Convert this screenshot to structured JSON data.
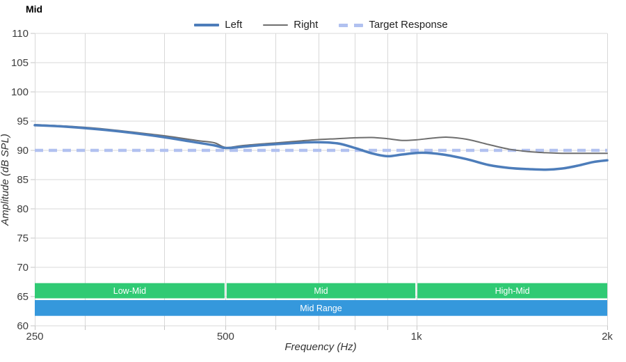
{
  "title": "Mid",
  "legend": [
    {
      "label": "Left",
      "style": "solid",
      "color": "#4d7dba"
    },
    {
      "label": "Right",
      "style": "solid",
      "color": "#6e6e6e"
    },
    {
      "label": "Target Response",
      "style": "dashed",
      "color": "#b1c1f0"
    }
  ],
  "chart_data": {
    "type": "line",
    "title": "Mid",
    "xlabel": "Frequency (Hz)",
    "ylabel": "Amplitude (dB SPL)",
    "x_scale": "log",
    "xlim": [
      250,
      2000
    ],
    "ylim": [
      60,
      110
    ],
    "grid": true,
    "legend_position": "top-center",
    "x_ticks": [
      {
        "value": 250,
        "label": "250"
      },
      {
        "value": 500,
        "label": "500"
      },
      {
        "value": 1000,
        "label": "1k"
      },
      {
        "value": 2000,
        "label": "2k"
      }
    ],
    "x_gridlines": [
      250,
      300,
      400,
      500,
      600,
      700,
      800,
      900,
      1000,
      2000
    ],
    "y_ticks": [
      {
        "value": 110,
        "label": "110"
      },
      {
        "value": 105,
        "label": "105"
      },
      {
        "value": 100,
        "label": "100"
      },
      {
        "value": 95,
        "label": "95"
      },
      {
        "value": 90,
        "label": "90"
      },
      {
        "value": 85,
        "label": "85"
      },
      {
        "value": 80,
        "label": "80"
      },
      {
        "value": 75,
        "label": "75"
      },
      {
        "value": 70,
        "label": "70"
      },
      {
        "value": 65,
        "label": "65"
      },
      {
        "value": 60,
        "label": "60"
      }
    ],
    "series": [
      {
        "name": "Left",
        "color": "#4d7dba",
        "width": 3.5,
        "dash": null,
        "points": [
          [
            250,
            94.3
          ],
          [
            280,
            94.05
          ],
          [
            315,
            93.6
          ],
          [
            355,
            93.0
          ],
          [
            400,
            92.25
          ],
          [
            450,
            91.35
          ],
          [
            480,
            90.85
          ],
          [
            500,
            90.4
          ],
          [
            530,
            90.6
          ],
          [
            570,
            90.9
          ],
          [
            630,
            91.2
          ],
          [
            690,
            91.4
          ],
          [
            750,
            91.2
          ],
          [
            800,
            90.4
          ],
          [
            850,
            89.5
          ],
          [
            900,
            89.0
          ],
          [
            950,
            89.3
          ],
          [
            1020,
            89.6
          ],
          [
            1100,
            89.3
          ],
          [
            1200,
            88.5
          ],
          [
            1300,
            87.5
          ],
          [
            1400,
            87.0
          ],
          [
            1500,
            86.8
          ],
          [
            1600,
            86.7
          ],
          [
            1700,
            86.9
          ],
          [
            1800,
            87.4
          ],
          [
            1900,
            88.0
          ],
          [
            2000,
            88.3
          ]
        ]
      },
      {
        "name": "Right",
        "color": "#6e6e6e",
        "width": 2,
        "dash": null,
        "points": [
          [
            250,
            94.4
          ],
          [
            280,
            94.15
          ],
          [
            315,
            93.75
          ],
          [
            355,
            93.15
          ],
          [
            400,
            92.5
          ],
          [
            450,
            91.7
          ],
          [
            480,
            91.3
          ],
          [
            500,
            90.5
          ],
          [
            530,
            90.8
          ],
          [
            570,
            91.1
          ],
          [
            630,
            91.45
          ],
          [
            690,
            91.8
          ],
          [
            750,
            92.0
          ],
          [
            800,
            92.15
          ],
          [
            850,
            92.2
          ],
          [
            900,
            92.0
          ],
          [
            950,
            91.7
          ],
          [
            1000,
            91.8
          ],
          [
            1060,
            92.1
          ],
          [
            1120,
            92.25
          ],
          [
            1200,
            91.9
          ],
          [
            1300,
            91.0
          ],
          [
            1400,
            90.2
          ],
          [
            1500,
            89.8
          ],
          [
            1600,
            89.6
          ],
          [
            1700,
            89.5
          ],
          [
            1800,
            89.5
          ],
          [
            1900,
            89.5
          ],
          [
            2000,
            89.5
          ]
        ]
      },
      {
        "name": "Target Response",
        "color": "#b1c1f0",
        "width": 4.5,
        "dash": [
          12,
          8
        ],
        "points": [
          [
            250,
            90
          ],
          [
            2000,
            90
          ]
        ]
      }
    ],
    "bands": {
      "rows": [
        {
          "name": "top",
          "y_range": [
            64.7,
            67.3
          ]
        },
        {
          "name": "bottom",
          "y_range": [
            61.7,
            64.4
          ]
        }
      ],
      "segments": [
        {
          "row": "top",
          "label": "Low-Mid",
          "from": 250,
          "to": 500,
          "color": "#30ca74"
        },
        {
          "row": "top",
          "label": "Mid",
          "from": 500,
          "to": 1000,
          "color": "#30ca74"
        },
        {
          "row": "top",
          "label": "High-Mid",
          "from": 1000,
          "to": 2000,
          "color": "#30ca74"
        },
        {
          "row": "bottom",
          "label": "Mid Range",
          "from": 250,
          "to": 2000,
          "color": "#3598dc"
        }
      ],
      "label_color": "#ffffff"
    },
    "colors": {
      "grid": "#d8d8d8",
      "tick_mark": "#c6c6c6",
      "tick_label": "#3d3d3d"
    }
  }
}
